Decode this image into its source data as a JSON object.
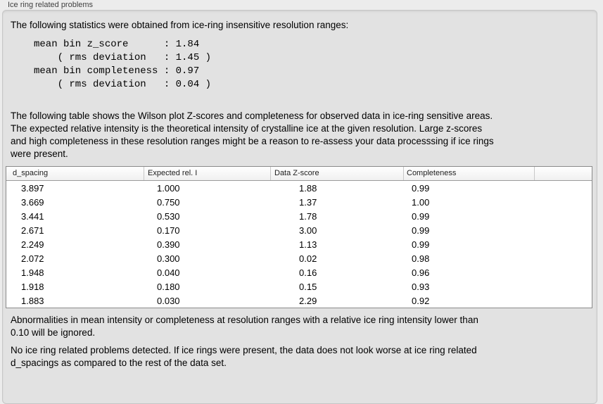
{
  "panel": {
    "title": "Ice ring related problems"
  },
  "stats": {
    "intro": "The following statistics were obtained from ice-ring insensitive resolution ranges:",
    "lines": [
      "mean bin z_score      : 1.84",
      "    ( rms deviation   : 1.45 )",
      "mean bin completeness : 0.97",
      "    ( rms deviation   : 0.04 )"
    ]
  },
  "description": {
    "lines": [
      "The following table shows the Wilson plot Z-scores and completeness for observed data in ice-ring sensitive areas.",
      "The expected relative intensity is the theoretical intensity of crystalline ice at the given resolution. Large z-scores",
      "and high completeness in these resolution ranges might be a reason to re-assess your data processsing if ice rings",
      "were present."
    ]
  },
  "table": {
    "columns": [
      "d_spacing",
      "Expected rel. I",
      "Data Z-score",
      "Completeness"
    ],
    "rows": [
      [
        "3.897",
        "1.000",
        "1.88",
        "0.99"
      ],
      [
        "3.669",
        "0.750",
        "1.37",
        "1.00"
      ],
      [
        "3.441",
        "0.530",
        "1.78",
        "0.99"
      ],
      [
        "2.671",
        "0.170",
        "3.00",
        "0.99"
      ],
      [
        "2.249",
        "0.390",
        "1.13",
        "0.99"
      ],
      [
        "2.072",
        "0.300",
        "0.02",
        "0.98"
      ],
      [
        "1.948",
        "0.040",
        "0.16",
        "0.96"
      ],
      [
        "1.918",
        "0.180",
        "0.15",
        "0.93"
      ],
      [
        "1.883",
        "0.030",
        "2.29",
        "0.92"
      ]
    ]
  },
  "notes": {
    "ignore": {
      "lines": [
        "Abnormalities in mean intensity or completeness at resolution ranges with a relative ice ring intensity lower than",
        "0.10 will be ignored."
      ]
    },
    "conclusion": {
      "lines": [
        "No ice ring related problems detected. If ice rings were present, the data does not look worse at ice ring related",
        "d_spacings as compared to the rest of the data set."
      ]
    }
  },
  "colors": {
    "page_background": "#ececec",
    "groupbox_background": "#e2e2e2",
    "table_background": "#ffffff",
    "table_border": "#8a8a8a"
  }
}
